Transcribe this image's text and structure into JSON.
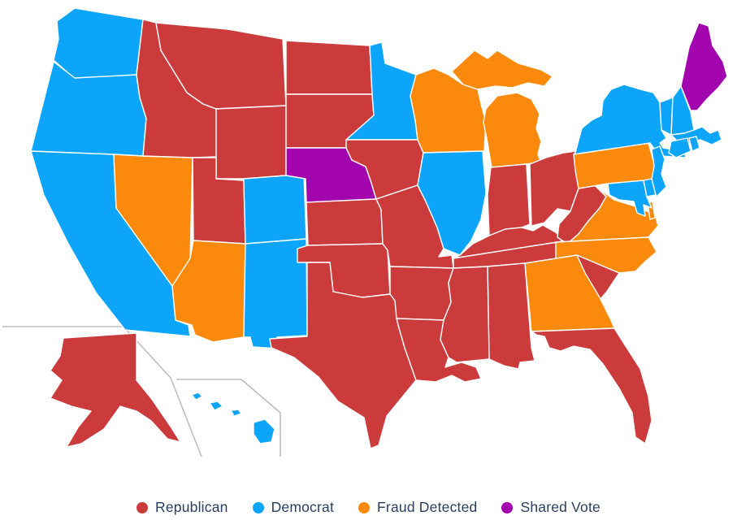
{
  "legend": {
    "items": [
      {
        "label": "Republican",
        "color": "#cb3b3c"
      },
      {
        "label": "Democrat",
        "color": "#0da5f9"
      },
      {
        "label": "Fraud Detected",
        "color": "#fb8a0c"
      },
      {
        "label": "Shared Vote",
        "color": "#a204ae"
      }
    ]
  },
  "map": {
    "palette": {
      "Republican": "#cb3b3c",
      "Democrat": "#0da5f9",
      "Fraud Detected": "#fb8a0c",
      "Shared Vote": "#a204ae"
    },
    "border_color": "#ffffff",
    "inset_line_color": "#bdbdbd",
    "states": [
      {
        "id": "WA",
        "name": "Washington",
        "category": "Democrat"
      },
      {
        "id": "OR",
        "name": "Oregon",
        "category": "Democrat"
      },
      {
        "id": "CA",
        "name": "California",
        "category": "Democrat"
      },
      {
        "id": "NV",
        "name": "Nevada",
        "category": "Fraud Detected"
      },
      {
        "id": "ID",
        "name": "Idaho",
        "category": "Republican"
      },
      {
        "id": "MT",
        "name": "Montana",
        "category": "Republican"
      },
      {
        "id": "WY",
        "name": "Wyoming",
        "category": "Republican"
      },
      {
        "id": "UT",
        "name": "Utah",
        "category": "Republican"
      },
      {
        "id": "CO",
        "name": "Colorado",
        "category": "Democrat"
      },
      {
        "id": "AZ",
        "name": "Arizona",
        "category": "Fraud Detected"
      },
      {
        "id": "NM",
        "name": "New Mexico",
        "category": "Democrat"
      },
      {
        "id": "ND",
        "name": "North Dakota",
        "category": "Republican"
      },
      {
        "id": "SD",
        "name": "South Dakota",
        "category": "Republican"
      },
      {
        "id": "NE",
        "name": "Nebraska",
        "category": "Shared Vote"
      },
      {
        "id": "KS",
        "name": "Kansas",
        "category": "Republican"
      },
      {
        "id": "OK",
        "name": "Oklahoma",
        "category": "Republican"
      },
      {
        "id": "TX",
        "name": "Texas",
        "category": "Republican"
      },
      {
        "id": "MN",
        "name": "Minnesota",
        "category": "Democrat"
      },
      {
        "id": "IA",
        "name": "Iowa",
        "category": "Republican"
      },
      {
        "id": "MO",
        "name": "Missouri",
        "category": "Republican"
      },
      {
        "id": "AR",
        "name": "Arkansas",
        "category": "Republican"
      },
      {
        "id": "LA",
        "name": "Louisiana",
        "category": "Republican"
      },
      {
        "id": "WI",
        "name": "Wisconsin",
        "category": "Fraud Detected"
      },
      {
        "id": "IL",
        "name": "Illinois",
        "category": "Democrat"
      },
      {
        "id": "MI",
        "name": "Michigan",
        "category": "Fraud Detected"
      },
      {
        "id": "IN",
        "name": "Indiana",
        "category": "Republican"
      },
      {
        "id": "OH",
        "name": "Ohio",
        "category": "Republican"
      },
      {
        "id": "KY",
        "name": "Kentucky",
        "category": "Republican"
      },
      {
        "id": "TN",
        "name": "Tennessee",
        "category": "Republican"
      },
      {
        "id": "WV",
        "name": "West Virginia",
        "category": "Republican"
      },
      {
        "id": "VA",
        "name": "Virginia",
        "category": "Fraud Detected"
      },
      {
        "id": "NC",
        "name": "North Carolina",
        "category": "Fraud Detected"
      },
      {
        "id": "SC",
        "name": "South Carolina",
        "category": "Republican"
      },
      {
        "id": "GA",
        "name": "Georgia",
        "category": "Fraud Detected"
      },
      {
        "id": "AL",
        "name": "Alabama",
        "category": "Republican"
      },
      {
        "id": "MS",
        "name": "Mississippi",
        "category": "Republican"
      },
      {
        "id": "FL",
        "name": "Florida",
        "category": "Republican"
      },
      {
        "id": "PA",
        "name": "Pennsylvania",
        "category": "Fraud Detected"
      },
      {
        "id": "NY",
        "name": "New York",
        "category": "Democrat"
      },
      {
        "id": "NJ",
        "name": "New Jersey",
        "category": "Democrat"
      },
      {
        "id": "MD",
        "name": "Maryland",
        "category": "Democrat"
      },
      {
        "id": "DE",
        "name": "Delaware",
        "category": "Democrat"
      },
      {
        "id": "VT",
        "name": "Vermont",
        "category": "Democrat"
      },
      {
        "id": "NH",
        "name": "New Hampshire",
        "category": "Democrat"
      },
      {
        "id": "ME",
        "name": "Maine",
        "category": "Shared Vote"
      },
      {
        "id": "MA",
        "name": "Massachusetts",
        "category": "Democrat"
      },
      {
        "id": "CT",
        "name": "Connecticut",
        "category": "Democrat"
      },
      {
        "id": "RI",
        "name": "Rhode Island",
        "category": "Democrat"
      },
      {
        "id": "AK",
        "name": "Alaska",
        "category": "Republican"
      },
      {
        "id": "HI",
        "name": "Hawaii",
        "category": "Democrat"
      }
    ]
  },
  "chart_data": {
    "type": "choropleth",
    "title": "",
    "legend_entries": [
      "Republican",
      "Democrat",
      "Fraud Detected",
      "Shared Vote"
    ],
    "legend_position": "bottom-center",
    "categories_by_state": {
      "AK": "Republican",
      "AL": "Republican",
      "AR": "Republican",
      "AZ": "Fraud Detected",
      "CA": "Democrat",
      "CO": "Democrat",
      "CT": "Democrat",
      "DE": "Democrat",
      "FL": "Republican",
      "GA": "Fraud Detected",
      "HI": "Democrat",
      "IA": "Republican",
      "ID": "Republican",
      "IL": "Democrat",
      "IN": "Republican",
      "KS": "Republican",
      "KY": "Republican",
      "LA": "Republican",
      "MA": "Democrat",
      "MD": "Democrat",
      "ME": "Shared Vote",
      "MI": "Fraud Detected",
      "MN": "Democrat",
      "MO": "Republican",
      "MS": "Republican",
      "MT": "Republican",
      "NC": "Fraud Detected",
      "ND": "Republican",
      "NE": "Shared Vote",
      "NH": "Democrat",
      "NJ": "Democrat",
      "NM": "Democrat",
      "NV": "Fraud Detected",
      "NY": "Democrat",
      "OH": "Republican",
      "OK": "Republican",
      "OR": "Democrat",
      "PA": "Fraud Detected",
      "RI": "Democrat",
      "SC": "Republican",
      "SD": "Republican",
      "TN": "Republican",
      "TX": "Republican",
      "UT": "Republican",
      "VA": "Fraud Detected",
      "VT": "Democrat",
      "WA": "Democrat",
      "WI": "Fraud Detected",
      "WV": "Republican",
      "WY": "Republican"
    }
  }
}
